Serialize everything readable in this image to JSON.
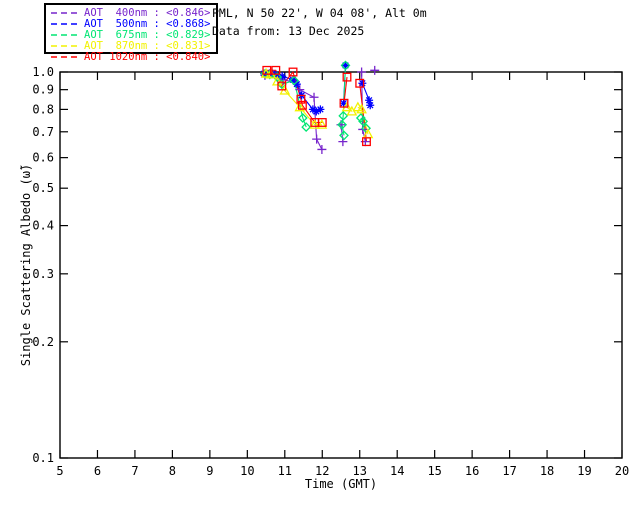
{
  "header": {
    "site_line": "PML, N 50 22', W 04 08', Alt 0m",
    "date_line": "Data from: 13 Dec 2025"
  },
  "legend": {
    "entries": [
      {
        "id": "400nm",
        "label": "AOT  400nm : <0.846>",
        "mean": "0.846",
        "color": "#7725CC"
      },
      {
        "id": "500nm",
        "label": "AOT  500nm : <0.868>",
        "mean": "0.868",
        "color": "#0000FF"
      },
      {
        "id": "675nm",
        "label": "AOT  675nm : <0.829>",
        "mean": "0.829",
        "color": "#00E673"
      },
      {
        "id": "870nm",
        "label": "AOT  870nm : <0.831>",
        "mean": "0.831",
        "color": "#F2F200"
      },
      {
        "id": "1020nm",
        "label": "AOT 1020nm : <0.840>",
        "mean": "0.840",
        "color": "#FF0000"
      }
    ]
  },
  "chart_data": {
    "type": "line",
    "title": "",
    "xlabel": "Time (GMT)",
    "ylabel": "Single Scattering Albedo (ω̃)",
    "xlim": [
      5,
      20
    ],
    "ylim": [
      0.1,
      1.0
    ],
    "yscale": "log",
    "grid": false,
    "xticks": [
      5,
      6,
      7,
      8,
      9,
      10,
      11,
      12,
      13,
      14,
      15,
      16,
      17,
      18,
      19,
      20
    ],
    "xtick_labels": [
      "5",
      "6",
      "7",
      "8",
      "9",
      "10",
      "11",
      "12",
      "13",
      "14",
      "15",
      "16",
      "17",
      "18",
      "19",
      "20"
    ],
    "yticks": [
      1.0,
      0.9,
      0.8,
      0.7,
      0.6,
      0.5,
      0.4,
      0.3,
      0.2,
      0.1
    ],
    "ytick_labels": [
      "1.0",
      "0.9",
      "0.8",
      "0.7",
      "0.6",
      "0.5",
      "0.4",
      "0.3",
      "0.2",
      "0.1"
    ],
    "legend_position": "top-left-outside",
    "series": [
      {
        "name": "AOT 400nm",
        "wavelength": 400,
        "mean_ssa": 0.846,
        "color": "#7725CC",
        "marker": "plus",
        "segments": [
          [
            [
              10.47,
              0.98
            ],
            [
              10.6,
              0.99
            ],
            [
              10.78,
              0.975
            ],
            [
              10.95,
              0.955
            ],
            [
              11.27,
              0.94
            ],
            [
              11.4,
              0.9
            ],
            [
              11.78,
              0.86
            ],
            [
              11.85,
              0.67
            ],
            [
              11.99,
              0.63
            ]
          ],
          [
            [
              12.5,
              0.73
            ],
            [
              12.55,
              0.66
            ]
          ],
          [
            [
              13.05,
              1.0
            ],
            [
              13.08,
              0.71
            ],
            [
              13.15,
              0.66
            ]
          ],
          [
            [
              13.4,
              1.01
            ]
          ]
        ]
      },
      {
        "name": "AOT 500nm",
        "wavelength": 500,
        "mean_ssa": 0.868,
        "color": "#0000FF",
        "marker": "asterisk",
        "segments": [
          [
            [
              10.45,
              0.99
            ],
            [
              10.55,
              0.985
            ],
            [
              10.67,
              0.99
            ],
            [
              10.78,
              0.98
            ],
            [
              10.93,
              0.975
            ],
            [
              11.22,
              0.955
            ],
            [
              11.32,
              0.93
            ],
            [
              11.45,
              0.87
            ],
            [
              11.75,
              0.8
            ],
            [
              11.84,
              0.79
            ],
            [
              11.95,
              0.8
            ]
          ],
          [
            [
              12.62,
              1.04
            ],
            [
              12.57,
              0.83
            ]
          ],
          [
            [
              13.07,
              0.935
            ],
            [
              13.25,
              0.845
            ],
            [
              13.28,
              0.82
            ]
          ]
        ]
      },
      {
        "name": "AOT 675nm",
        "wavelength": 675,
        "mean_ssa": 0.829,
        "color": "#00E673",
        "marker": "diamond",
        "segments": [
          [
            [
              10.48,
              0.99
            ],
            [
              10.6,
              0.985
            ],
            [
              10.8,
              0.97
            ],
            [
              10.92,
              0.93
            ],
            [
              11.25,
              0.95
            ],
            [
              11.48,
              0.76
            ],
            [
              11.57,
              0.72
            ]
          ],
          [
            [
              12.62,
              1.04
            ],
            [
              12.56,
              0.77
            ],
            [
              12.53,
              0.73
            ],
            [
              12.58,
              0.685
            ]
          ],
          [
            [
              13.03,
              0.76
            ],
            [
              13.09,
              0.745
            ],
            [
              13.17,
              0.715
            ]
          ]
        ]
      },
      {
        "name": "AOT 870nm",
        "wavelength": 870,
        "mean_ssa": 0.831,
        "color": "#F2F200",
        "marker": "triangle",
        "segments": [
          [
            [
              10.5,
              0.99
            ],
            [
              10.63,
              0.985
            ],
            [
              10.8,
              0.945
            ],
            [
              11.0,
              0.895
            ],
            [
              11.4,
              0.81
            ],
            [
              11.8,
              0.73
            ],
            [
              11.99,
              0.73
            ]
          ],
          [
            [
              12.66,
              0.81
            ],
            [
              12.79,
              0.79
            ]
          ],
          [
            [
              12.95,
              0.81
            ],
            [
              13.05,
              0.8
            ],
            [
              13.22,
              0.69
            ]
          ]
        ]
      },
      {
        "name": "AOT 1020nm",
        "wavelength": 1020,
        "mean_ssa": 0.84,
        "color": "#FF0000",
        "marker": "square",
        "segments": [
          [
            [
              10.52,
              1.01
            ],
            [
              10.76,
              1.01
            ],
            [
              10.92,
              0.92
            ],
            [
              11.22,
              1.0
            ],
            [
              11.43,
              0.85
            ],
            [
              11.47,
              0.82
            ],
            [
              11.8,
              0.74
            ],
            [
              12.0,
              0.74
            ]
          ],
          [
            [
              12.66,
              0.97
            ],
            [
              12.58,
              0.83
            ]
          ],
          [
            [
              13.0,
              0.935
            ],
            [
              13.18,
              0.66
            ]
          ]
        ]
      }
    ]
  }
}
